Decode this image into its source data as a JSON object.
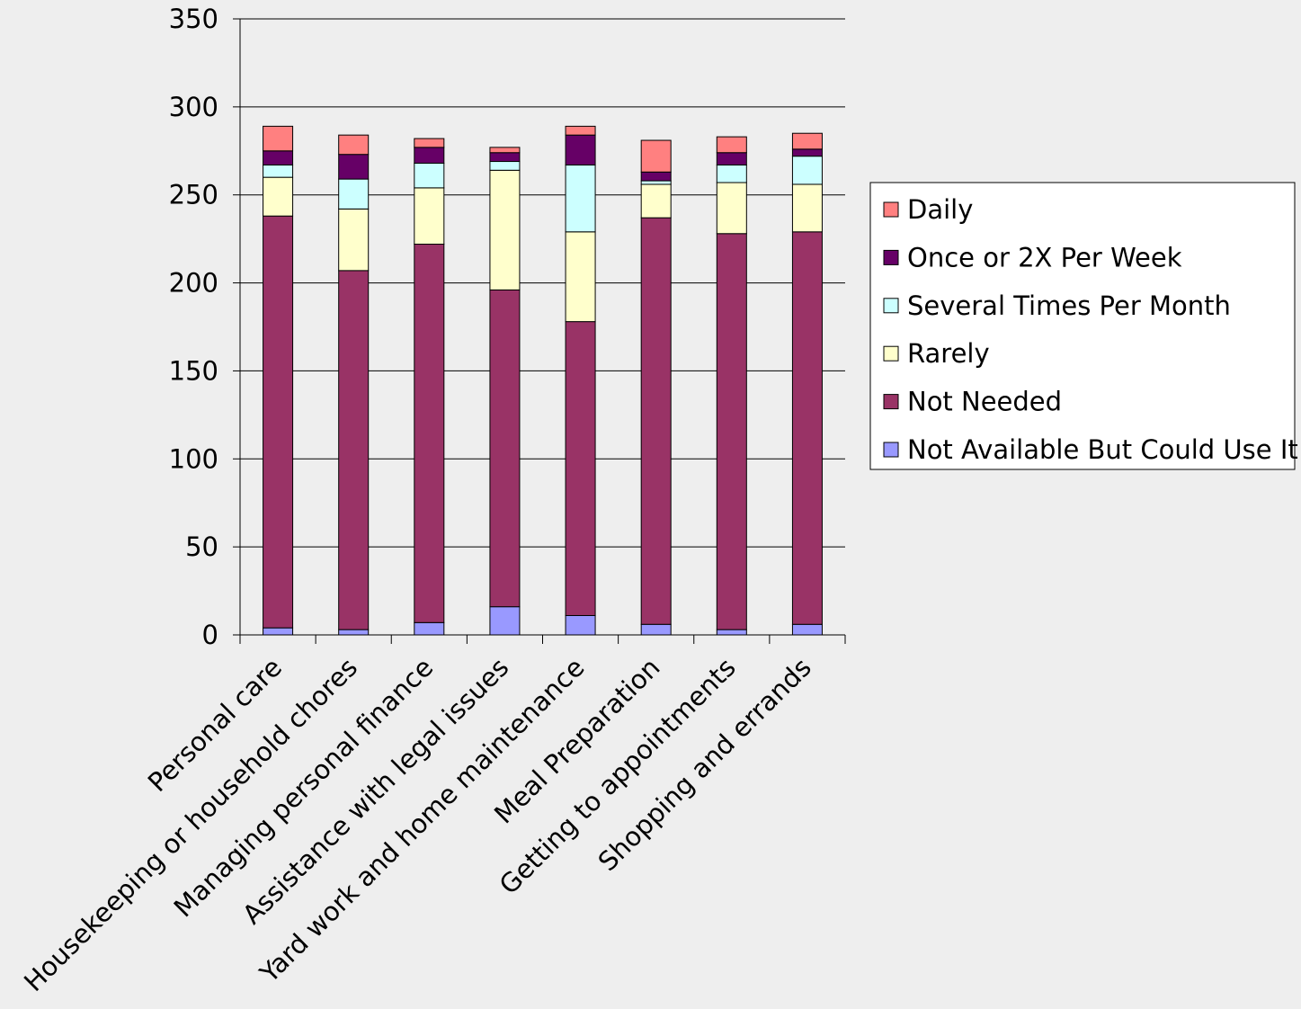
{
  "chart_data": {
    "type": "bar",
    "stacked": true,
    "categories": [
      "Personal care",
      "Housekeeping or household chores",
      "Managing personal finance",
      "Assistance with legal issues",
      "Yard work and home maintenance",
      "Meal Preparation",
      "Getting to appointments",
      "Shopping and errands"
    ],
    "series": [
      {
        "name": "Not Available But Could Use It",
        "color": "#9999ff",
        "values": [
          4,
          3,
          7,
          16,
          11,
          6,
          3,
          6
        ]
      },
      {
        "name": "Not Needed",
        "color": "#993366",
        "values": [
          234,
          204,
          215,
          180,
          167,
          231,
          225,
          223
        ]
      },
      {
        "name": "Rarely",
        "color": "#ffffcc",
        "values": [
          22,
          35,
          32,
          68,
          51,
          19,
          29,
          27
        ]
      },
      {
        "name": "Several Times Per Month",
        "color": "#ccffff",
        "values": [
          7,
          17,
          14,
          5,
          38,
          2,
          10,
          16
        ]
      },
      {
        "name": "Once or 2X Per Week",
        "color": "#660066",
        "values": [
          8,
          14,
          9,
          5,
          17,
          5,
          7,
          4
        ]
      },
      {
        "name": "Daily",
        "color": "#ff8080",
        "values": [
          14,
          11,
          5,
          3,
          5,
          18,
          9,
          9
        ]
      }
    ],
    "legend_order": [
      5,
      4,
      3,
      2,
      1,
      0
    ],
    "legend_position": "right",
    "ylim": [
      0,
      350
    ],
    "yticks": [
      0,
      50,
      100,
      150,
      200,
      250,
      300,
      350
    ],
    "grid": true,
    "xlabel": "",
    "ylabel": "",
    "title": ""
  }
}
